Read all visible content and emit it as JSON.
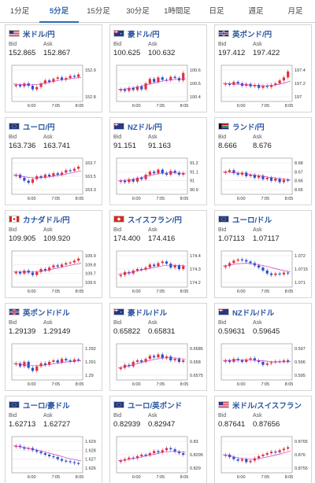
{
  "tabs": [
    {
      "label": "1分足",
      "active": false
    },
    {
      "label": "5分足",
      "active": true
    },
    {
      "label": "15分足",
      "active": false
    },
    {
      "label": "30分足",
      "active": false
    },
    {
      "label": "1時間足",
      "active": false
    },
    {
      "label": "日足",
      "active": false
    },
    {
      "label": "週足",
      "active": false
    },
    {
      "label": "月足",
      "active": false
    }
  ],
  "labels": {
    "bid": "Bid",
    "ask": "Ask"
  },
  "colors": {
    "up": "#e0323a",
    "down": "#2a4fc8",
    "ma": "#c93cc9",
    "accent": "#2b6cb0"
  },
  "pairs": [
    {
      "name": "米ドル/円",
      "flag": "us",
      "bid": "152.865",
      "ask": "152.867",
      "x_ticks": [
        "6:00",
        "7:05",
        "8:05"
      ],
      "y_ticks": [
        "152.9",
        "152.8"
      ],
      "trend": [
        0.45,
        0.4,
        0.5,
        0.42,
        0.3,
        0.38,
        0.5,
        0.6,
        0.55,
        0.65,
        0.7,
        0.62,
        0.68,
        0.75,
        0.72,
        0.8
      ],
      "ma": [
        0.48,
        0.46,
        0.45,
        0.45,
        0.46,
        0.48,
        0.52,
        0.56,
        0.6,
        0.63,
        0.66,
        0.68,
        0.7
      ]
    },
    {
      "name": "豪ドル/円",
      "flag": "au",
      "bid": "100.625",
      "ask": "100.632",
      "x_ticks": [
        "6:00",
        "7:05",
        "8:05"
      ],
      "y_ticks": [
        "100.6",
        "100.5",
        "100.4"
      ],
      "trend": [
        0.3,
        0.25,
        0.35,
        0.28,
        0.4,
        0.3,
        0.5,
        0.65,
        0.55,
        0.7,
        0.62,
        0.6,
        0.72,
        0.68,
        0.6,
        0.85
      ],
      "ma": [
        0.3,
        0.31,
        0.33,
        0.36,
        0.4,
        0.45,
        0.5,
        0.54,
        0.58,
        0.61,
        0.63,
        0.64,
        0.66
      ]
    },
    {
      "name": "英ポンド/円",
      "flag": "gb",
      "bid": "197.412",
      "ask": "197.422",
      "x_ticks": [
        "6:00",
        "7:05",
        "8:05"
      ],
      "y_ticks": [
        "197.4",
        "197.2",
        "197"
      ],
      "trend": [
        0.5,
        0.45,
        0.55,
        0.5,
        0.42,
        0.48,
        0.4,
        0.45,
        0.35,
        0.42,
        0.38,
        0.45,
        0.5,
        0.6,
        0.7,
        0.9
      ],
      "ma": [
        0.5,
        0.49,
        0.48,
        0.47,
        0.45,
        0.44,
        0.43,
        0.42,
        0.42,
        0.44,
        0.47,
        0.52,
        0.58
      ]
    },
    {
      "name": "ユーロ/円",
      "flag": "eu",
      "bid": "163.736",
      "ask": "163.741",
      "x_ticks": [
        "6:00",
        "7:05",
        "8:05"
      ],
      "y_ticks": [
        "163.7",
        "163.5",
        "163.3"
      ],
      "trend": [
        0.55,
        0.45,
        0.35,
        0.28,
        0.4,
        0.5,
        0.45,
        0.55,
        0.5,
        0.6,
        0.55,
        0.62,
        0.7,
        0.68,
        0.75,
        0.82
      ],
      "ma": [
        0.55,
        0.52,
        0.48,
        0.45,
        0.44,
        0.45,
        0.47,
        0.5,
        0.53,
        0.56,
        0.6,
        0.64,
        0.68
      ]
    },
    {
      "name": "NZドル/円",
      "flag": "nz",
      "bid": "91.151",
      "ask": "91.163",
      "x_ticks": [
        "6:00",
        "7:05",
        "8:05"
      ],
      "y_ticks": [
        "91.2",
        "91.1",
        "91",
        "90.9"
      ],
      "trend": [
        0.35,
        0.3,
        0.4,
        0.32,
        0.45,
        0.4,
        0.55,
        0.65,
        0.6,
        0.72,
        0.6,
        0.55,
        0.68,
        0.62,
        0.55,
        0.6
      ],
      "ma": [
        0.35,
        0.36,
        0.38,
        0.41,
        0.45,
        0.5,
        0.54,
        0.58,
        0.6,
        0.61,
        0.61,
        0.6,
        0.6
      ]
    },
    {
      "name": "ランド/円",
      "flag": "za",
      "bid": "8.666",
      "ask": "8.676",
      "x_ticks": [
        "6:00",
        "7:05",
        "8:05"
      ],
      "y_ticks": [
        "8.68",
        "8.67",
        "8.66",
        "8.65"
      ],
      "trend": [
        0.65,
        0.7,
        0.6,
        0.55,
        0.62,
        0.5,
        0.55,
        0.45,
        0.52,
        0.4,
        0.45,
        0.35,
        0.42,
        0.3,
        0.38,
        0.35
      ],
      "ma": [
        0.65,
        0.64,
        0.62,
        0.6,
        0.58,
        0.55,
        0.52,
        0.5,
        0.47,
        0.45,
        0.42,
        0.4,
        0.38
      ]
    },
    {
      "name": "カナダドル/円",
      "flag": "ca",
      "bid": "109.905",
      "ask": "109.920",
      "x_ticks": [
        "6:00",
        "7:05",
        "8:05"
      ],
      "y_ticks": [
        "109.9",
        "109.8",
        "109.7",
        "109.6"
      ],
      "trend": [
        0.4,
        0.35,
        0.45,
        0.38,
        0.3,
        0.4,
        0.5,
        0.45,
        0.55,
        0.62,
        0.58,
        0.65,
        0.7,
        0.72,
        0.78,
        0.85
      ],
      "ma": [
        0.42,
        0.41,
        0.4,
        0.4,
        0.41,
        0.43,
        0.46,
        0.5,
        0.54,
        0.58,
        0.62,
        0.66,
        0.7
      ]
    },
    {
      "name": "スイスフラン/円",
      "flag": "ch",
      "bid": "174.400",
      "ask": "174.416",
      "x_ticks": [
        "6:00",
        "7:05",
        "8:05"
      ],
      "y_ticks": [
        "174.4",
        "174.3",
        "174.2"
      ],
      "trend": [
        0.3,
        0.4,
        0.35,
        0.45,
        0.5,
        0.48,
        0.55,
        0.65,
        0.6,
        0.7,
        0.75,
        0.68,
        0.55,
        0.62,
        0.5,
        0.6
      ],
      "ma": [
        0.32,
        0.35,
        0.38,
        0.42,
        0.46,
        0.5,
        0.54,
        0.58,
        0.61,
        0.63,
        0.63,
        0.62,
        0.6
      ]
    },
    {
      "name": "ユーロ/ドル",
      "flag": "eu",
      "bid": "1.07113",
      "ask": "1.07117",
      "x_ticks": [
        "6:00",
        "7:05",
        "8:05"
      ],
      "y_ticks": [
        "1.072",
        "1.0715",
        "1.071"
      ],
      "trend": [
        0.6,
        0.7,
        0.78,
        0.82,
        0.8,
        0.75,
        0.7,
        0.62,
        0.55,
        0.45,
        0.35,
        0.3,
        0.35,
        0.32,
        0.38,
        0.35
      ],
      "ma": [
        0.6,
        0.63,
        0.66,
        0.68,
        0.69,
        0.68,
        0.66,
        0.62,
        0.58,
        0.53,
        0.48,
        0.44,
        0.41
      ]
    },
    {
      "name": "英ポンド/ドル",
      "flag": "gb",
      "bid": "1.29139",
      "ask": "1.29149",
      "x_ticks": [
        "6:00",
        "7:05",
        "8:05"
      ],
      "y_ticks": [
        "1.292",
        "1.291",
        "1.29"
      ],
      "trend": [
        0.45,
        0.35,
        0.5,
        0.3,
        0.2,
        0.35,
        0.45,
        0.4,
        0.5,
        0.55,
        0.48,
        0.6,
        0.55,
        0.5,
        0.58,
        0.55
      ],
      "ma": [
        0.45,
        0.42,
        0.4,
        0.38,
        0.37,
        0.38,
        0.4,
        0.43,
        0.46,
        0.49,
        0.51,
        0.53,
        0.54
      ]
    },
    {
      "name": "豪ドル/ドル",
      "flag": "au",
      "bid": "0.65822",
      "ask": "0.65831",
      "x_ticks": [
        "6:00",
        "7:05",
        "8:05"
      ],
      "y_ticks": [
        "0.6585",
        "0.658",
        "0.6575"
      ],
      "trend": [
        0.3,
        0.4,
        0.35,
        0.5,
        0.55,
        0.5,
        0.6,
        0.7,
        0.65,
        0.75,
        0.62,
        0.68,
        0.55,
        0.6,
        0.5,
        0.55
      ],
      "ma": [
        0.3,
        0.33,
        0.37,
        0.42,
        0.47,
        0.52,
        0.56,
        0.6,
        0.63,
        0.64,
        0.63,
        0.61,
        0.58
      ]
    },
    {
      "name": "NZドル/ドル",
      "flag": "nz",
      "bid": "0.59631",
      "ask": "0.59645",
      "x_ticks": [
        "6:00",
        "7:05",
        "8:05"
      ],
      "y_ticks": [
        "0.597",
        "0.596",
        "0.595"
      ],
      "trend": [
        0.55,
        0.5,
        0.6,
        0.55,
        0.5,
        0.58,
        0.62,
        0.55,
        0.5,
        0.4,
        0.45,
        0.48,
        0.52,
        0.5,
        0.55,
        0.5
      ],
      "ma": [
        0.55,
        0.55,
        0.56,
        0.56,
        0.56,
        0.56,
        0.55,
        0.54,
        0.52,
        0.5,
        0.5,
        0.5,
        0.51
      ]
    },
    {
      "name": "ユーロ/豪ドル",
      "flag": "eu",
      "bid": "1.62713",
      "ask": "1.62727",
      "x_ticks": [
        "6:00",
        "7:05",
        "8:05"
      ],
      "y_ticks": [
        "1.629",
        "1.628",
        "1.627",
        "1.626"
      ],
      "trend": [
        0.8,
        0.75,
        0.7,
        0.72,
        0.65,
        0.6,
        0.55,
        0.5,
        0.45,
        0.42,
        0.35,
        0.3,
        0.28,
        0.25,
        0.22,
        0.2
      ],
      "ma": [
        0.8,
        0.77,
        0.74,
        0.7,
        0.66,
        0.62,
        0.57,
        0.52,
        0.47,
        0.42,
        0.37,
        0.33,
        0.29
      ]
    },
    {
      "name": "ユーロ/英ポンド",
      "flag": "eu",
      "bid": "0.82939",
      "ask": "0.82947",
      "x_ticks": [
        "6:00",
        "7:05",
        "8:05"
      ],
      "y_ticks": [
        "0.83",
        "0.8295",
        "0.829"
      ],
      "trend": [
        0.3,
        0.35,
        0.4,
        0.38,
        0.45,
        0.5,
        0.48,
        0.55,
        0.62,
        0.58,
        0.65,
        0.72,
        0.68,
        0.6,
        0.55,
        0.5
      ],
      "ma": [
        0.3,
        0.32,
        0.35,
        0.38,
        0.42,
        0.46,
        0.5,
        0.54,
        0.58,
        0.6,
        0.61,
        0.6,
        0.58
      ]
    },
    {
      "name": "米ドル/スイスフラン",
      "flag": "us",
      "bid": "0.87641",
      "ask": "0.87656",
      "x_ticks": [
        "6:00",
        "7:05",
        "8:05"
      ],
      "y_ticks": [
        "0.8765",
        "0.876",
        "0.8755"
      ],
      "trend": [
        0.5,
        0.42,
        0.35,
        0.3,
        0.35,
        0.25,
        0.3,
        0.38,
        0.45,
        0.5,
        0.55,
        0.6,
        0.58,
        0.65,
        0.7,
        0.75
      ],
      "ma": [
        0.5,
        0.47,
        0.43,
        0.39,
        0.36,
        0.35,
        0.36,
        0.39,
        0.43,
        0.47,
        0.52,
        0.57,
        0.62
      ]
    }
  ]
}
